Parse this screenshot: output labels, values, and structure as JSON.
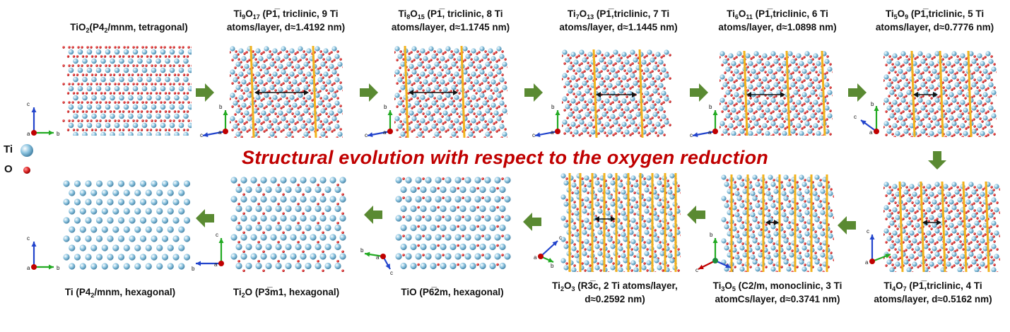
{
  "banner": "Structural evolution with respect to the oxygen reduction",
  "legend": {
    "ti_label": "Ti",
    "o_label": "O",
    "ti_color": "#8cc4e0",
    "o_color": "#dd2222"
  },
  "colors": {
    "arrow": "#5a8a32",
    "plane": "#f2b21c",
    "axis_a": "#c00000",
    "axis_b": "#22aa22",
    "axis_c": "#2244cc"
  },
  "phases": {
    "tio2": {
      "prefix": "TiO",
      "sub1": "2",
      "mid": "",
      "sub2": "",
      "line1_rest": "(P4",
      "sg_sub": "2",
      "sg_rest": "/mnm, tetragonal)",
      "line2": ""
    },
    "ti9o17": {
      "prefix": "Ti",
      "sub1": "9",
      "mid": "O",
      "sub2": "17",
      "line1_rest": " (P1̅, triclinic, 9 Ti",
      "line2": "atoms/layer, d≈1.4192 nm)"
    },
    "ti8o15": {
      "prefix": "Ti",
      "sub1": "8",
      "mid": "O",
      "sub2": "15",
      "line1_rest": " (P1̅, triclinic, 8 Ti",
      "line2": "atoms/layer, d≈1.1745 nm)"
    },
    "ti7o13": {
      "prefix": "Ti",
      "sub1": "7",
      "mid": "O",
      "sub2": "13",
      "line1_rest": " (P1̅,triclinic, 7 Ti",
      "line2": "atoms/layer, d≈1.1445 nm)"
    },
    "ti6o11": {
      "prefix": "Ti",
      "sub1": "6",
      "mid": "O",
      "sub2": "11",
      "line1_rest": " (P1̅,triclinic, 6 Ti",
      "line2": "atoms/layer, d≈1.0898 nm)"
    },
    "ti5o9": {
      "prefix": "Ti",
      "sub1": "5",
      "mid": "O",
      "sub2": "9",
      "line1_rest": " (P1̅,triclinic, 5 Ti",
      "line2": "atoms/layer, d≈0.7776 nm)"
    },
    "ti4o7": {
      "prefix": "Ti",
      "sub1": "4",
      "mid": "O",
      "sub2": "7",
      "line1_rest": " (P1̅,triclinic, 4 Ti",
      "line2": "atoms/layer, d≈0.5162 nm)"
    },
    "ti3o5": {
      "prefix": "Ti",
      "sub1": "3",
      "mid": "O",
      "sub2": "5",
      "line1_rest": " (C2/m, monoclinic, 3 Ti",
      "line2": "atomCs/layer, d≈0.3741 nm)"
    },
    "ti2o3": {
      "prefix": "Ti",
      "sub1": "2",
      "mid": "O",
      "sub2": "3",
      "line1_rest": " (R3̅c, 2 Ti atoms/layer,",
      "line2": "d≈0.2592 nm)"
    },
    "tio": {
      "text": "TiO (P6̅2m, hexagonal)"
    },
    "ti2o": {
      "prefix": "Ti",
      "sub1": "2",
      "rest": "O (P3̅m1, hexagonal)"
    },
    "ti": {
      "prefix": "Ti (P4",
      "sub1": "2",
      "rest": "/mnm, hexagonal)"
    }
  },
  "axis_letters": {
    "a": "a",
    "b": "b",
    "c": "c"
  }
}
